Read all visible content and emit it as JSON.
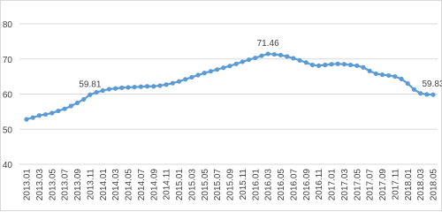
{
  "chart_data": {
    "type": "line",
    "categories": [
      "2013.01",
      null,
      "2013.03",
      null,
      "2013.05",
      null,
      "2013.07",
      null,
      "2013.09",
      null,
      "2013.11",
      null,
      "2014.01",
      null,
      "2014.03",
      null,
      "2014.05",
      null,
      "2014.07",
      null,
      "2014.09",
      null,
      "2014.11",
      null,
      "2015.01",
      null,
      "2015.03",
      null,
      "2015.05",
      null,
      "2015.07",
      null,
      "2015.09",
      null,
      "2015.11",
      null,
      "2016.01",
      null,
      "2016.03",
      null,
      "2016.05",
      null,
      "2016.07",
      null,
      "2016.09",
      null,
      "2016.11",
      null,
      "2017.01",
      null,
      "2017.03",
      null,
      "2017.05",
      null,
      "2017.07",
      null,
      "2017.09",
      null,
      "2017.11",
      null,
      "2018.01",
      null,
      "2018.03",
      null,
      "2018.05"
    ],
    "series": [
      {
        "color": "#5b9bd5",
        "values": [
          52.8,
          53.3,
          53.9,
          54.2,
          54.6,
          55.2,
          55.8,
          56.6,
          57.5,
          58.5,
          59.81,
          60.5,
          61.0,
          61.4,
          61.6,
          61.8,
          61.9,
          62.0,
          62.1,
          62.2,
          62.2,
          62.4,
          62.7,
          63.1,
          63.6,
          64.2,
          64.8,
          65.4,
          66.0,
          66.5,
          67.0,
          67.5,
          68.0,
          68.6,
          69.2,
          69.8,
          70.3,
          70.9,
          71.46,
          71.3,
          71.1,
          70.7,
          70.2,
          69.6,
          69.0,
          68.3,
          68.1,
          68.3,
          68.5,
          68.6,
          68.5,
          68.3,
          68.1,
          67.6,
          66.6,
          65.8,
          65.5,
          65.3,
          65.0,
          64.3,
          63.0,
          61.3,
          60.2,
          59.9,
          59.83
        ],
        "value_labels": [
          null,
          null,
          null,
          null,
          null,
          null,
          null,
          null,
          null,
          null,
          "59.81",
          null,
          null,
          null,
          null,
          null,
          null,
          null,
          null,
          null,
          null,
          null,
          null,
          null,
          null,
          null,
          null,
          null,
          null,
          null,
          null,
          null,
          null,
          null,
          null,
          null,
          null,
          null,
          "71.46",
          null,
          null,
          null,
          null,
          null,
          null,
          null,
          null,
          null,
          null,
          null,
          null,
          null,
          null,
          null,
          null,
          null,
          null,
          null,
          null,
          null,
          null,
          null,
          null,
          null,
          "59.83"
        ]
      }
    ],
    "ylim": [
      40,
      80
    ],
    "yticks": [
      40,
      50,
      60,
      70,
      80
    ],
    "grid": true
  }
}
